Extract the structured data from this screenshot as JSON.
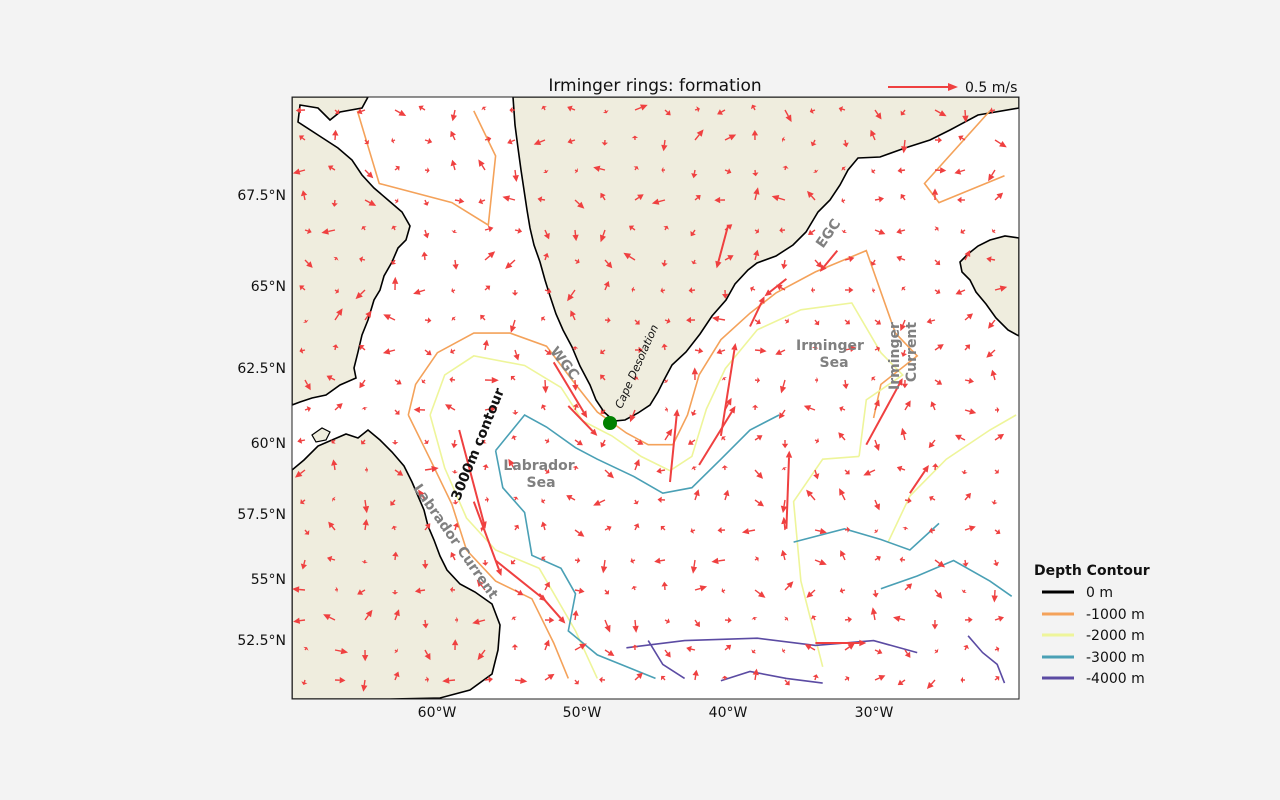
{
  "chart_data": {
    "type": "map",
    "title": "Irminger rings: formation",
    "lon_range": [
      -70,
      -20
    ],
    "lat_range": [
      50.5,
      69.5
    ],
    "x_ticks": [
      "60°W",
      "50°W",
      "40°W",
      "30°W"
    ],
    "x_tick_values": [
      -60,
      -50,
      -40,
      -30
    ],
    "y_ticks": [
      "67.5°N",
      "65°N",
      "62.5°N",
      "60°N",
      "57.5°N",
      "55°N",
      "52.5°N"
    ],
    "y_tick_values": [
      67.5,
      65,
      62.5,
      60,
      57.5,
      55,
      52.5
    ],
    "quiver_key": {
      "label": "0.5 m/s",
      "color": "#ef4040"
    },
    "legend": {
      "title": "Depth Contour",
      "placement": "right",
      "entries": [
        {
          "label": "0 m",
          "color": "#000000"
        },
        {
          "label": "-1000 m",
          "color": "#f4a25a"
        },
        {
          "label": "-2000 m",
          "color": "#eef59a"
        },
        {
          "label": "-3000 m",
          "color": "#4aa0b5"
        },
        {
          "label": "-4000 m",
          "color": "#5b4ba3"
        }
      ]
    },
    "region_labels": [
      {
        "id": "labrador-sea",
        "lines": [
          "Labrador",
          "Sea"
        ]
      },
      {
        "id": "irminger-sea",
        "lines": [
          "Irminger",
          "Sea"
        ]
      },
      {
        "id": "irminger-current",
        "lines": [
          "Irminger",
          "Current"
        ]
      },
      {
        "id": "egc",
        "lines": [
          "EGC"
        ]
      },
      {
        "id": "wgc",
        "lines": [
          "WGC"
        ]
      },
      {
        "id": "labrador-current",
        "lines": [
          "Labrador Current"
        ]
      }
    ],
    "annotations": {
      "contour_3000": "3000m contour",
      "cape_desolation": "Cape Desolation"
    },
    "cape_desolation_point": {
      "lon": -48.3,
      "lat": 60.7,
      "color": "#008000"
    },
    "colors": {
      "land": "#efedde",
      "ocean": "#ffffff",
      "coast": "#000000",
      "arrow": "#ef4040",
      "figure_bg": "#f3f3f3"
    },
    "key_arrows": [
      {
        "lon": -58.5,
        "lat": 60.5,
        "dlon": 1.8,
        "dlat": -3.5
      },
      {
        "lon": -57.5,
        "lat": 58.0,
        "dlon": 1.9,
        "dlat": -2.8
      },
      {
        "lon": -56.0,
        "lat": 55.8,
        "dlon": 3.5,
        "dlat": -1.6
      },
      {
        "lon": -53.0,
        "lat": 54.5,
        "dlon": 1.8,
        "dlat": -1.2
      },
      {
        "lon": -52.0,
        "lat": 62.7,
        "dlon": 2.3,
        "dlat": -1.8
      },
      {
        "lon": -51.0,
        "lat": 61.3,
        "dlon": 2.0,
        "dlat": -1.0
      },
      {
        "lon": -44.0,
        "lat": 58.7,
        "dlon": 0.5,
        "dlat": 2.5
      },
      {
        "lon": -42.0,
        "lat": 59.3,
        "dlon": 2.5,
        "dlat": 2.0
      },
      {
        "lon": -40.5,
        "lat": 60.3,
        "dlon": 1.0,
        "dlat": 3.0
      },
      {
        "lon": -38.5,
        "lat": 63.8,
        "dlon": 1.0,
        "dlat": 0.9
      },
      {
        "lon": -36.0,
        "lat": 65.2,
        "dlon": -1.5,
        "dlat": -0.5
      },
      {
        "lon": -40.0,
        "lat": 66.7,
        "dlon": -0.8,
        "dlat": -1.2
      },
      {
        "lon": -32.5,
        "lat": 66.0,
        "dlon": -1.2,
        "dlat": -0.6
      },
      {
        "lon": -30.5,
        "lat": 60.0,
        "dlon": 2.5,
        "dlat": 2.2
      },
      {
        "lon": -36.0,
        "lat": 57.0,
        "dlon": 0.2,
        "dlat": 2.8
      },
      {
        "lon": -34.0,
        "lat": 52.5,
        "dlon": 3.5,
        "dlat": 0.0
      },
      {
        "lon": -27.5,
        "lat": 58.3,
        "dlon": 1.3,
        "dlat": 1.0
      }
    ],
    "depth_contours": {
      "c0": [],
      "c1000": [
        [
          [
            -62.0,
            61.0
          ],
          [
            -61.5,
            62.0
          ],
          [
            -60.0,
            63.0
          ],
          [
            -57.5,
            63.6
          ],
          [
            -55.0,
            63.6
          ],
          [
            -52.5,
            63.2
          ],
          [
            -50.5,
            62.0
          ],
          [
            -49.0,
            61.1
          ],
          [
            -47.0,
            60.4
          ],
          [
            -45.5,
            60.0
          ],
          [
            -43.8,
            60.0
          ],
          [
            -42.8,
            61.0
          ],
          [
            -42.0,
            62.3
          ],
          [
            -40.5,
            63.4
          ],
          [
            -38.5,
            64.2
          ],
          [
            -36.7,
            64.8
          ],
          [
            -34.0,
            65.4
          ],
          [
            -30.5,
            66.0
          ],
          [
            -28.5,
            63.6
          ],
          [
            -27.0,
            62.9
          ],
          [
            -29.5,
            62.0
          ],
          [
            -30.0,
            60.9
          ]
        ],
        [
          [
            -62.0,
            61.0
          ],
          [
            -60.5,
            59.5
          ],
          [
            -59.0,
            57.9
          ],
          [
            -58.0,
            56.2
          ],
          [
            -56.0,
            55.0
          ],
          [
            -53.5,
            54.3
          ],
          [
            -52.0,
            52.5
          ],
          [
            -51.0,
            51.0
          ]
        ],
        [
          [
            -65.5,
            69.6
          ],
          [
            -64.0,
            67.8
          ],
          [
            -59.0,
            67.3
          ],
          [
            -56.5,
            66.7
          ],
          [
            -56.0,
            68.5
          ],
          [
            -57.5,
            69.6
          ]
        ],
        [
          [
            -22.0,
            69.6
          ],
          [
            -26.5,
            67.8
          ],
          [
            -25.5,
            67.3
          ],
          [
            -21.0,
            68.0
          ]
        ]
      ],
      "c2000": [
        [
          [
            -60.5,
            61.0
          ],
          [
            -59.5,
            62.3
          ],
          [
            -57.5,
            62.9
          ],
          [
            -54.0,
            62.6
          ],
          [
            -51.5,
            61.9
          ],
          [
            -50.0,
            60.8
          ],
          [
            -48.0,
            60.3
          ],
          [
            -46.0,
            59.6
          ],
          [
            -44.0,
            59.1
          ],
          [
            -42.5,
            59.6
          ],
          [
            -41.5,
            61.2
          ],
          [
            -40.2,
            62.5
          ],
          [
            -38.0,
            63.7
          ],
          [
            -35.0,
            64.3
          ],
          [
            -31.5,
            64.5
          ],
          [
            -29.5,
            63.0
          ],
          [
            -28.0,
            62.3
          ],
          [
            -30.5,
            61.5
          ],
          [
            -31.0,
            59.6
          ]
        ],
        [
          [
            -60.5,
            61.0
          ],
          [
            -59.5,
            59.2
          ],
          [
            -58.0,
            57.4
          ],
          [
            -56.0,
            56.2
          ],
          [
            -53.0,
            55.5
          ],
          [
            -50.5,
            53.0
          ],
          [
            -49.0,
            51.0
          ]
        ],
        [
          [
            -33.5,
            51.5
          ],
          [
            -35.0,
            55.0
          ],
          [
            -35.5,
            58.0
          ],
          [
            -33.5,
            59.5
          ],
          [
            -31.0,
            59.6
          ]
        ],
        [
          [
            -29.0,
            56.5
          ],
          [
            -27.5,
            58.2
          ],
          [
            -25.0,
            59.5
          ],
          [
            -22.0,
            60.5
          ],
          [
            -20.2,
            61.0
          ]
        ]
      ],
      "c3000": [
        [
          [
            -56.0,
            59.8
          ],
          [
            -54.0,
            61.0
          ],
          [
            -52.5,
            60.6
          ],
          [
            -50.5,
            59.9
          ],
          [
            -49.0,
            59.5
          ],
          [
            -46.5,
            58.9
          ],
          [
            -44.5,
            58.3
          ],
          [
            -42.5,
            58.5
          ],
          [
            -40.5,
            59.5
          ],
          [
            -38.5,
            60.5
          ],
          [
            -36.5,
            61.0
          ]
        ],
        [
          [
            -56.0,
            59.8
          ],
          [
            -55.5,
            58.5
          ],
          [
            -54.0,
            57.6
          ],
          [
            -53.5,
            56.0
          ],
          [
            -51.5,
            55.5
          ],
          [
            -50.5,
            54.5
          ],
          [
            -51.0,
            53.0
          ],
          [
            -49.0,
            52.0
          ],
          [
            -45.0,
            51.0
          ]
        ],
        [
          [
            -35.5,
            56.5
          ],
          [
            -32.0,
            57.0
          ],
          [
            -29.5,
            56.6
          ],
          [
            -27.5,
            56.2
          ],
          [
            -25.5,
            57.2
          ]
        ],
        [
          [
            -29.5,
            54.7
          ],
          [
            -27.0,
            55.2
          ],
          [
            -24.5,
            55.8
          ],
          [
            -22.0,
            55.0
          ],
          [
            -20.5,
            54.4
          ]
        ]
      ],
      "c4000": [
        [
          [
            -47.0,
            52.3
          ],
          [
            -43.0,
            52.6
          ],
          [
            -38.0,
            52.7
          ],
          [
            -34.0,
            52.4
          ],
          [
            -30.0,
            52.6
          ],
          [
            -27.0,
            52.1
          ]
        ],
        [
          [
            -45.5,
            52.6
          ],
          [
            -44.5,
            51.6
          ],
          [
            -43.0,
            51.0
          ]
        ],
        [
          [
            -40.5,
            50.9
          ],
          [
            -38.5,
            51.3
          ],
          [
            -36.0,
            51.0
          ],
          [
            -33.5,
            50.8
          ]
        ],
        [
          [
            -23.5,
            52.8
          ],
          [
            -22.5,
            52.1
          ],
          [
            -21.5,
            51.6
          ],
          [
            -21.0,
            50.8
          ]
        ]
      ]
    }
  }
}
